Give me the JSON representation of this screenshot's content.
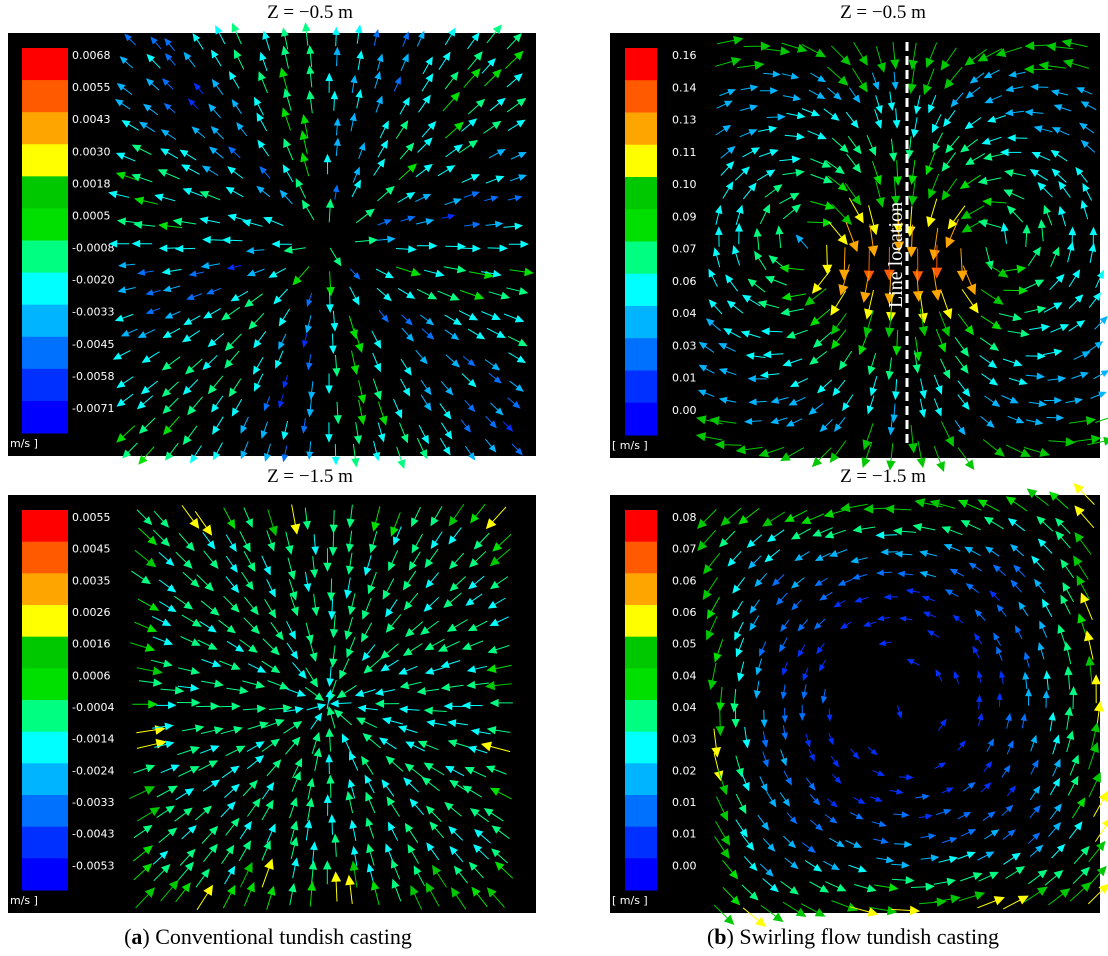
{
  "panels": [
    {
      "title": "Z = −0.5 m",
      "colorbar_labels": [
        "0.0068",
        "0.0055",
        "0.0043",
        "0.0030",
        "0.0018",
        "0.0005",
        "-0.0008",
        "-0.0020",
        "-0.0033",
        "-0.0045",
        "-0.0058",
        "-0.0071"
      ],
      "unit": "m/s ]"
    },
    {
      "title": "Z = −0.5 m",
      "colorbar_labels": [
        "0.16",
        "0.14",
        "0.13",
        "0.11",
        "0.10",
        "0.09",
        "0.07",
        "0.06",
        "0.04",
        "0.03",
        "0.01",
        "0.00"
      ],
      "unit": "[ m/s ]",
      "annotation": "Line location"
    },
    {
      "title": "Z = −1.5 m",
      "colorbar_labels": [
        "0.0055",
        "0.0045",
        "0.0035",
        "0.0026",
        "0.0016",
        "0.0006",
        "-0.0004",
        "-0.0014",
        "-0.0024",
        "-0.0033",
        "-0.0043",
        "-0.0053"
      ],
      "unit": "m/s ]"
    },
    {
      "title": "Z = −1.5 m",
      "colorbar_labels": [
        "0.08",
        "0.07",
        "0.06",
        "0.06",
        "0.05",
        "0.04",
        "0.04",
        "0.03",
        "0.02",
        "0.01",
        "0.01",
        "0.00"
      ],
      "unit": "[ m/s ]"
    }
  ],
  "captions": [
    {
      "open": "(",
      "letter": "a",
      "rest": ") Conventional tundish casting"
    },
    {
      "open": "(",
      "letter": "b",
      "rest": ") Swirling flow tundish casting"
    }
  ]
}
